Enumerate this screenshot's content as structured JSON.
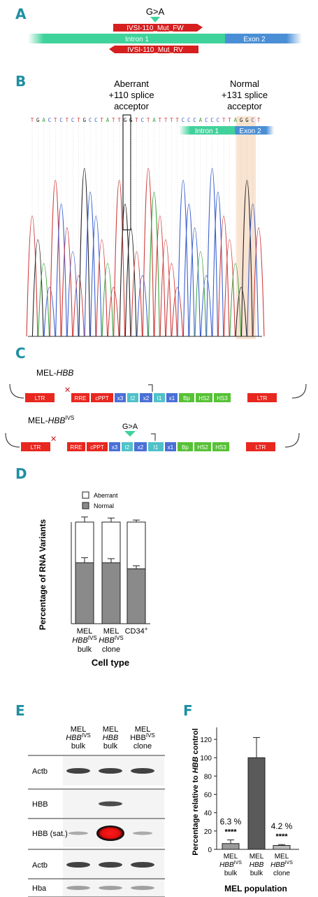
{
  "panels": {
    "a": "A",
    "b": "B",
    "c": "C",
    "d": "D",
    "e": "E",
    "f": "F"
  },
  "panel_a": {
    "mutation": "G>A",
    "primer_fw": "IVSI-110_Mut_FW",
    "primer_rv": "IVSI-110_Mut_RV",
    "intron": "Intron 1",
    "exon": "Exon 2"
  },
  "panel_b": {
    "aberrant_line1": "Aberrant",
    "aberrant_line2": "+110 splice",
    "aberrant_line3": "acceptor",
    "normal_line1": "Normal",
    "normal_line2": "+131 splice",
    "normal_line3": "acceptor",
    "sequence": "TGACTCTCTGCCTATTGGTCTATTTTCCCACCCTTAGGCT",
    "intron": "Intron 1",
    "exon": "Exon 2",
    "trace_colors": {
      "A": "#3aa43a",
      "C": "#3a5fd0",
      "G": "#222222",
      "T": "#d03a3a"
    }
  },
  "panel_c": {
    "construct1_name": "MEL-",
    "construct1_gene": "HBB",
    "construct2_name": "MEL-",
    "construct2_gene": "HBB",
    "construct2_sup": "IVS",
    "mutation": "G>A",
    "elements1": [
      "LTR",
      "RRE",
      "cPPT",
      "x3",
      "I2",
      "x2",
      "I1",
      "x1",
      "Bp",
      "HS2",
      "HS3",
      "LTR"
    ],
    "elements2": [
      "LTR",
      "RRE",
      "cPPT",
      "x3",
      "I2",
      "x2",
      "I1",
      "x1",
      "Bp",
      "HS2",
      "HS3",
      "LTR"
    ],
    "colors": {
      "red": "#e8271f",
      "blue": "#4a6fd6",
      "cyan": "#4fc1c9",
      "green": "#55c234",
      "teal": "#3fd29b"
    }
  },
  "panel_d": {
    "legend_aberrant": "Aberrant",
    "legend_normal": "Normal",
    "ylabel": "Percentage of RNA Variants",
    "xlabel": "Cell type",
    "cat1_l1": "MEL",
    "cat1_l2": "HBB",
    "cat1_sup": "IVS",
    "cat1_l3": "bulk",
    "cat2_l1": "MEL",
    "cat2_l2": "HBB",
    "cat2_sup": "IVS",
    "cat2_l3": "clone",
    "cat3": "CD34",
    "cat3_sup": "+"
  },
  "chart_data": [
    {
      "type": "bar",
      "stacked": true,
      "categories": [
        "MEL HBB IVS bulk",
        "MEL HBB IVS clone",
        "CD34+"
      ],
      "series": [
        {
          "name": "Normal",
          "values": [
            60,
            60,
            54
          ],
          "error": [
            5,
            4,
            3
          ],
          "color": "#8a8a8a"
        },
        {
          "name": "Aberrant",
          "values": [
            40,
            40,
            46
          ],
          "error": [
            5,
            4,
            2
          ],
          "color": "#ffffff"
        }
      ],
      "ylabel": "Percentage of RNA Variants",
      "xlabel": "Cell type",
      "ylim": [
        0,
        100
      ],
      "legend": "top"
    },
    {
      "type": "bar",
      "categories": [
        "MEL HBB IVS bulk",
        "MEL HBB bulk",
        "MEL HBB IVS clone"
      ],
      "values": [
        6.3,
        100,
        4.2
      ],
      "error": [
        4,
        22,
        1
      ],
      "colors": [
        "#9a9a9a",
        "#5a5a5a",
        "#bdbdbd"
      ],
      "labels": [
        "6.3 %",
        "",
        "4.2 %"
      ],
      "significance": [
        "****",
        "",
        "****"
      ],
      "ylabel": "Percentage relative to HBB control",
      "xlabel": "MEL population",
      "ylim": [
        0,
        130
      ],
      "yticks": [
        0,
        20,
        40,
        60,
        80,
        100,
        120
      ]
    }
  ],
  "panel_e": {
    "col1_l1": "MEL",
    "col1_l2": "HBB",
    "col1_sup": "IVS",
    "col1_l3": "bulk",
    "col2_l1": "MEL",
    "col2_l2": "HBB",
    "col2_l3": "bulk",
    "col3_l1": "MEL",
    "col3_l2": "HBB",
    "col3_sup": "IVS",
    "col3_l3": "clone",
    "rows": [
      "Actb",
      "HBB",
      "HBB (sat.)",
      "Actb",
      "Hba"
    ]
  },
  "panel_f": {
    "ylabel_pre": "Percentage relative to ",
    "ylabel_gene": "HBB",
    "ylabel_post": " control",
    "xlabel": "MEL population",
    "c1_l1": "MEL",
    "c1_l2": "HBB",
    "c1_sup": "IVS",
    "c1_l3": "bulk",
    "c2_l1": "MEL",
    "c2_l2": "HBB",
    "c2_l3": "bulk",
    "c3_l1": "MEL",
    "c3_l2": "HBB",
    "c3_sup": "IVS",
    "c3_l3": "clone",
    "label1": "6.3 %",
    "label3": "4.2 %",
    "sig1": "****",
    "sig3": "****"
  }
}
